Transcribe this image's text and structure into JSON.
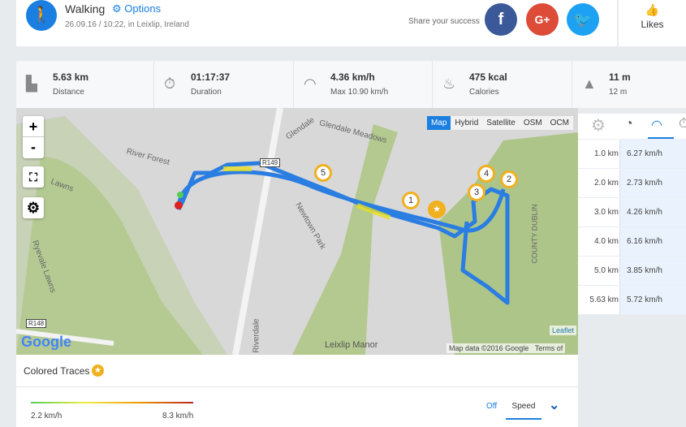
{
  "activity": {
    "title": "Walking",
    "options_label": "Options",
    "subtitle": "26.09.16 / 10:22, in Leixlip, Ireland",
    "icon": "walking-icon"
  },
  "share": {
    "label": "Share your success",
    "facebook": "f",
    "google": "G+",
    "twitter": "twitter-bird-icon"
  },
  "likes": {
    "label": "Likes"
  },
  "stats": [
    {
      "value": "5.63 km",
      "label": "Distance",
      "icon": "road-icon"
    },
    {
      "value": "01:17:37",
      "label": "Duration",
      "icon": "stopwatch-icon"
    },
    {
      "value": "4.36 km/h",
      "label": "Max 10.90 km/h",
      "icon": "speedometer-icon"
    },
    {
      "value": "475 kcal",
      "label": "Calories",
      "icon": "flame-icon"
    },
    {
      "value": "11 m",
      "label": "12 m",
      "icon": "elevation-icon"
    }
  ],
  "map": {
    "zoom_in": "+",
    "zoom_out": "-",
    "types": [
      "Map",
      "Hybrid",
      "Satellite",
      "OSM",
      "OCM"
    ],
    "active_type": "Map",
    "labels": {
      "river_forest": "River Forest",
      "glendale": "Glendale",
      "glendale_meadows": "Glendale Meadows",
      "newtown_park": "Newtown Park",
      "r149": "R149",
      "r148": "R148",
      "ryevale_lawns": "Ryevale Lawns",
      "county_dublin": "COUNTY DUBLIN",
      "riverdale": "Riverdale",
      "lawns": "Lawns",
      "leixlip_manor": "Leixlip Manor"
    },
    "markers": [
      "1",
      "2",
      "3",
      "4",
      "5"
    ],
    "google": "Google",
    "attribution": "Map data ©2016 Google",
    "terms": "Terms of",
    "leaflet": "Leaflet"
  },
  "splits": {
    "rows": [
      {
        "km": "1.0 km",
        "speed": "6.27 km/h"
      },
      {
        "km": "2.0 km",
        "speed": "2.73 km/h"
      },
      {
        "km": "3.0 km",
        "speed": "4.26 km/h"
      },
      {
        "km": "4.0 km",
        "speed": "6.16 km/h"
      },
      {
        "km": "5.0 km",
        "speed": "3.85 km/h"
      },
      {
        "km": "5.63 km",
        "speed": "5.72 km/h"
      }
    ]
  },
  "traces": {
    "title": "Colored Traces",
    "min": "2.2 km/h",
    "max": "8.3 km/h",
    "off": "Off",
    "speed": "Speed",
    "active": "Speed"
  },
  "colors": {
    "accent": "#1a7fe0",
    "route": "#2a7de1",
    "facebook": "#3b5998",
    "google": "#dd4b39",
    "twitter": "#1da1f2"
  }
}
